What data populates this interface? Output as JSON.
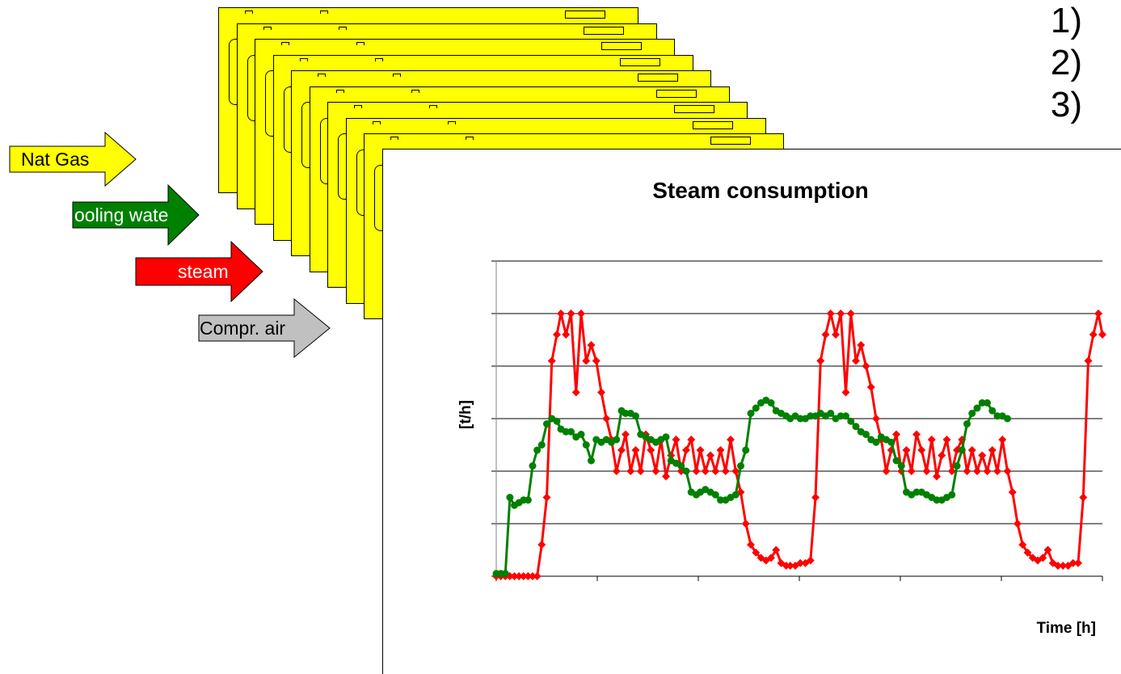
{
  "list_items": [
    "1)",
    "2)",
    "3)"
  ],
  "arrows": [
    {
      "label": "Nat Gas",
      "color": "#ffff00",
      "text_color": "#000000"
    },
    {
      "label": "ooling wate",
      "color": "#008000",
      "text_color": "#ffffff"
    },
    {
      "label": "steam",
      "color": "#ff0000",
      "text_color": "#ffffff"
    },
    {
      "label": "Compr. air",
      "color": "#c0c0c0",
      "text_color": "#000000"
    }
  ],
  "colors": {
    "card": "#ffff00",
    "red_series": "#ff0000",
    "green_series": "#008000",
    "grid": "#000000"
  },
  "chart_data": {
    "type": "line",
    "title": "Steam consumption",
    "xlabel": "Time [h]",
    "ylabel": "[t/h]",
    "ylim": [
      0,
      6
    ],
    "xlim": [
      0,
      6
    ],
    "grid": true,
    "legend": "none",
    "series": [
      {
        "color": "#ff0000",
        "marker": "diamond",
        "values": [
          [
            0.0,
            0
          ],
          [
            0.045,
            0
          ],
          [
            0.09,
            0
          ],
          [
            0.135,
            0
          ],
          [
            0.18,
            0
          ],
          [
            0.225,
            0
          ],
          [
            0.27,
            0
          ],
          [
            0.315,
            0
          ],
          [
            0.36,
            0
          ],
          [
            0.405,
            0
          ],
          [
            0.45,
            0.6
          ],
          [
            0.5,
            1.5
          ],
          [
            0.55,
            4.1
          ],
          [
            0.6,
            4.6
          ],
          [
            0.64,
            5.0
          ],
          [
            0.69,
            4.6
          ],
          [
            0.74,
            5.0
          ],
          [
            0.79,
            3.5
          ],
          [
            0.84,
            5.0
          ],
          [
            0.89,
            4.1
          ],
          [
            0.94,
            4.4
          ],
          [
            0.99,
            4.1
          ],
          [
            1.04,
            3.5
          ],
          [
            1.09,
            3.0
          ],
          [
            1.14,
            2.6
          ],
          [
            1.19,
            2.0
          ],
          [
            1.24,
            2.4
          ],
          [
            1.28,
            2.7
          ],
          [
            1.33,
            2.0
          ],
          [
            1.38,
            2.4
          ],
          [
            1.43,
            2.0
          ],
          [
            1.48,
            2.7
          ],
          [
            1.53,
            2.4
          ],
          [
            1.58,
            2.0
          ],
          [
            1.63,
            2.6
          ],
          [
            1.68,
            1.9
          ],
          [
            1.73,
            2.3
          ],
          [
            1.78,
            2.6
          ],
          [
            1.83,
            2.0
          ],
          [
            1.88,
            2.4
          ],
          [
            1.93,
            2.6
          ],
          [
            1.98,
            2.0
          ],
          [
            2.02,
            2.4
          ],
          [
            2.07,
            2.0
          ],
          [
            2.12,
            2.3
          ],
          [
            2.17,
            2.0
          ],
          [
            2.22,
            2.4
          ],
          [
            2.27,
            2.0
          ],
          [
            2.32,
            2.6
          ],
          [
            2.37,
            2.0
          ],
          [
            2.42,
            1.6
          ],
          [
            2.47,
            1.0
          ],
          [
            2.52,
            0.6
          ],
          [
            2.57,
            0.45
          ],
          [
            2.62,
            0.35
          ],
          [
            2.67,
            0.3
          ],
          [
            2.72,
            0.35
          ],
          [
            2.77,
            0.5
          ],
          [
            2.82,
            0.25
          ],
          [
            2.87,
            0.2
          ],
          [
            2.91,
            0.2
          ],
          [
            2.96,
            0.2
          ],
          [
            3.01,
            0.25
          ],
          [
            3.06,
            0.25
          ],
          [
            3.11,
            0.3
          ],
          [
            3.16,
            1.5
          ],
          [
            3.21,
            4.1
          ],
          [
            3.26,
            4.6
          ],
          [
            3.31,
            5.0
          ],
          [
            3.36,
            4.6
          ],
          [
            3.41,
            5.0
          ],
          [
            3.46,
            3.5
          ],
          [
            3.51,
            5.0
          ],
          [
            3.56,
            4.1
          ],
          [
            3.61,
            4.4
          ],
          [
            3.66,
            4.0
          ],
          [
            3.71,
            3.6
          ],
          [
            3.76,
            3.0
          ],
          [
            3.81,
            2.6
          ],
          [
            3.86,
            2.0
          ],
          [
            3.91,
            2.4
          ],
          [
            3.96,
            2.7
          ],
          [
            4.01,
            2.0
          ],
          [
            4.06,
            2.4
          ],
          [
            4.11,
            2.0
          ],
          [
            4.16,
            2.7
          ],
          [
            4.21,
            2.4
          ],
          [
            4.26,
            2.0
          ],
          [
            4.31,
            2.6
          ],
          [
            4.36,
            1.9
          ],
          [
            4.41,
            2.3
          ],
          [
            4.46,
            2.6
          ],
          [
            4.51,
            2.0
          ],
          [
            4.56,
            2.4
          ],
          [
            4.61,
            2.6
          ],
          [
            4.66,
            2.0
          ],
          [
            4.71,
            2.4
          ],
          [
            4.76,
            2.0
          ],
          [
            4.81,
            2.3
          ],
          [
            4.86,
            2.0
          ],
          [
            4.91,
            2.4
          ],
          [
            4.96,
            2.0
          ],
          [
            5.01,
            2.6
          ],
          [
            5.06,
            2.0
          ],
          [
            5.11,
            1.6
          ],
          [
            5.16,
            1.0
          ],
          [
            5.21,
            0.6
          ],
          [
            5.26,
            0.45
          ],
          [
            5.31,
            0.35
          ],
          [
            5.36,
            0.3
          ],
          [
            5.41,
            0.35
          ],
          [
            5.46,
            0.5
          ],
          [
            5.51,
            0.25
          ],
          [
            5.56,
            0.2
          ],
          [
            5.61,
            0.2
          ],
          [
            5.66,
            0.2
          ],
          [
            5.71,
            0.25
          ],
          [
            5.76,
            0.25
          ],
          [
            5.81,
            1.5
          ],
          [
            5.86,
            4.1
          ],
          [
            5.91,
            4.6
          ],
          [
            5.96,
            5.0
          ],
          [
            6.0,
            4.6
          ]
        ]
      },
      {
        "color": "#008000",
        "marker": "circle",
        "values": [
          [
            0.0,
            0.05
          ],
          [
            0.045,
            0.05
          ],
          [
            0.09,
            0.05
          ],
          [
            0.135,
            1.5
          ],
          [
            0.18,
            1.35
          ],
          [
            0.225,
            1.4
          ],
          [
            0.27,
            1.45
          ],
          [
            0.315,
            1.45
          ],
          [
            0.36,
            2.1
          ],
          [
            0.405,
            2.4
          ],
          [
            0.45,
            2.5
          ],
          [
            0.5,
            2.9
          ],
          [
            0.55,
            3.0
          ],
          [
            0.6,
            2.95
          ],
          [
            0.64,
            2.8
          ],
          [
            0.69,
            2.75
          ],
          [
            0.74,
            2.75
          ],
          [
            0.79,
            2.65
          ],
          [
            0.84,
            2.7
          ],
          [
            0.89,
            2.5
          ],
          [
            0.94,
            2.2
          ],
          [
            0.99,
            2.6
          ],
          [
            1.04,
            2.55
          ],
          [
            1.09,
            2.6
          ],
          [
            1.14,
            2.55
          ],
          [
            1.19,
            2.6
          ],
          [
            1.24,
            3.15
          ],
          [
            1.28,
            3.1
          ],
          [
            1.33,
            3.1
          ],
          [
            1.38,
            3.05
          ],
          [
            1.43,
            2.7
          ],
          [
            1.48,
            2.65
          ],
          [
            1.53,
            2.6
          ],
          [
            1.58,
            2.55
          ],
          [
            1.63,
            2.6
          ],
          [
            1.68,
            2.65
          ],
          [
            1.73,
            2.2
          ],
          [
            1.78,
            2.15
          ],
          [
            1.83,
            2.1
          ],
          [
            1.88,
            2.0
          ],
          [
            1.93,
            1.6
          ],
          [
            1.98,
            1.55
          ],
          [
            2.02,
            1.6
          ],
          [
            2.07,
            1.65
          ],
          [
            2.12,
            1.6
          ],
          [
            2.17,
            1.55
          ],
          [
            2.22,
            1.45
          ],
          [
            2.27,
            1.45
          ],
          [
            2.32,
            1.5
          ],
          [
            2.37,
            1.55
          ],
          [
            2.42,
            2.1
          ],
          [
            2.47,
            2.4
          ],
          [
            2.52,
            3.1
          ],
          [
            2.57,
            3.2
          ],
          [
            2.62,
            3.3
          ],
          [
            2.67,
            3.35
          ],
          [
            2.72,
            3.3
          ],
          [
            2.77,
            3.15
          ],
          [
            2.82,
            3.1
          ],
          [
            2.87,
            3.05
          ],
          [
            2.91,
            3.0
          ],
          [
            2.96,
            3.05
          ],
          [
            3.01,
            3.0
          ],
          [
            3.06,
            3.0
          ],
          [
            3.11,
            3.05
          ],
          [
            3.16,
            3.05
          ],
          [
            3.21,
            3.1
          ],
          [
            3.26,
            3.05
          ],
          [
            3.31,
            3.1
          ],
          [
            3.36,
            3.0
          ],
          [
            3.41,
            3.05
          ],
          [
            3.46,
            3.05
          ],
          [
            3.51,
            2.95
          ],
          [
            3.56,
            2.85
          ],
          [
            3.61,
            2.75
          ],
          [
            3.66,
            2.7
          ],
          [
            3.71,
            2.6
          ],
          [
            3.76,
            2.55
          ],
          [
            3.81,
            2.65
          ],
          [
            3.86,
            2.6
          ],
          [
            3.91,
            2.55
          ],
          [
            3.96,
            2.2
          ],
          [
            4.01,
            2.1
          ],
          [
            4.06,
            1.6
          ],
          [
            4.11,
            1.55
          ],
          [
            4.16,
            1.6
          ],
          [
            4.21,
            1.6
          ],
          [
            4.26,
            1.55
          ],
          [
            4.31,
            1.5
          ],
          [
            4.36,
            1.45
          ],
          [
            4.41,
            1.45
          ],
          [
            4.46,
            1.5
          ],
          [
            4.51,
            1.55
          ],
          [
            4.56,
            2.1
          ],
          [
            4.61,
            2.4
          ],
          [
            4.66,
            2.9
          ],
          [
            4.71,
            3.1
          ],
          [
            4.76,
            3.2
          ],
          [
            4.81,
            3.3
          ],
          [
            4.86,
            3.3
          ],
          [
            4.91,
            3.15
          ],
          [
            4.96,
            3.05
          ],
          [
            5.01,
            3.05
          ],
          [
            5.06,
            3.0
          ]
        ]
      }
    ]
  }
}
